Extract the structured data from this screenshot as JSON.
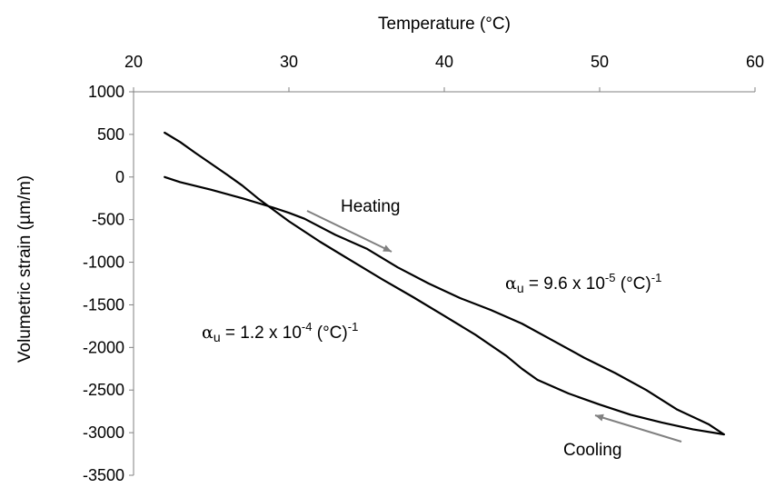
{
  "chart_data": {
    "type": "line",
    "xlabel": "Temperature (°C)",
    "ylabel": "Volumetric strain (µm/m)",
    "x_axis_position": "top",
    "xlim": [
      20,
      60
    ],
    "ylim": [
      -3500,
      1000
    ],
    "x_ticks": [
      "20",
      "30",
      "40",
      "50",
      "60"
    ],
    "y_ticks": [
      "1000",
      "500",
      "0",
      "-500",
      "-1000",
      "-1500",
      "-2000",
      "-2500",
      "-3000",
      "-3500"
    ],
    "grid": false,
    "legend": "none",
    "line_color": "#000000",
    "arrow_color": "#808080",
    "series": [
      {
        "x": [
          22,
          23,
          25,
          27,
          29,
          30,
          31,
          33,
          35,
          37,
          39,
          41,
          43,
          45,
          47,
          49,
          51,
          53,
          55,
          57,
          58
        ],
        "y": [
          0,
          -60,
          -150,
          -250,
          -360,
          -420,
          -490,
          -680,
          -840,
          -1060,
          -1250,
          -1420,
          -1560,
          -1720,
          -1920,
          -2120,
          -2300,
          -2500,
          -2730,
          -2900,
          -3020
        ]
      },
      {
        "x": [
          58,
          56,
          54,
          52,
          50,
          48,
          46,
          45,
          44,
          42,
          40,
          38,
          36,
          34,
          32,
          30,
          28,
          27,
          26,
          24,
          23,
          22
        ],
        "y": [
          -3020,
          -2960,
          -2880,
          -2790,
          -2670,
          -2540,
          -2380,
          -2250,
          -2100,
          -1850,
          -1630,
          -1410,
          -1200,
          -980,
          -760,
          -520,
          -250,
          -100,
          30,
          280,
          410,
          520
        ]
      }
    ],
    "annotations": {
      "heating": "Heating",
      "cooling": "Cooling",
      "alpha_heating": {
        "symbol": "α",
        "sub": "u",
        "text": " = 9.6 x 10",
        "exp": "-5",
        "unit": " (°C)",
        "unit_exp": "-1"
      },
      "alpha_cooling": {
        "symbol": "α",
        "sub": "u",
        "text": " = 1.2 x 10",
        "exp": "-4",
        "unit": " (°C)",
        "unit_exp": "-1"
      }
    }
  }
}
